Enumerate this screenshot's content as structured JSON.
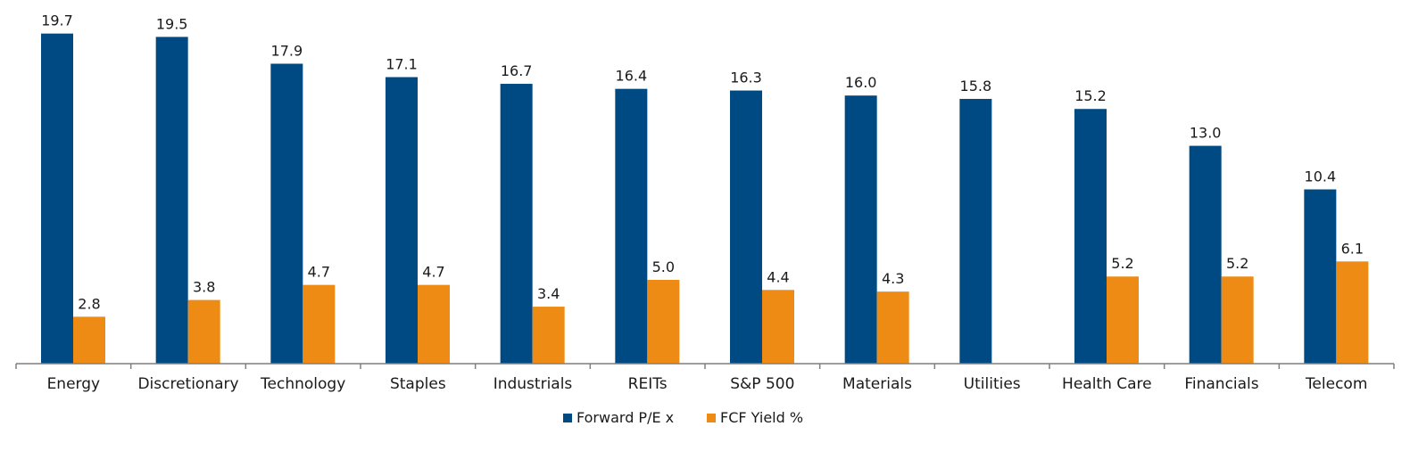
{
  "chart_data": {
    "type": "bar",
    "categories": [
      "Energy",
      "Discretionary",
      "Technology",
      "Staples",
      "Industrials",
      "REITs",
      "S&P 500",
      "Materials",
      "Utilities",
      "Health Care",
      "Financials",
      "Telecom"
    ],
    "series": [
      {
        "name": "Forward P/E x",
        "color": "#004a84",
        "values": [
          19.7,
          19.5,
          17.9,
          17.1,
          16.7,
          16.4,
          16.3,
          16.0,
          15.8,
          15.2,
          13.0,
          10.4
        ]
      },
      {
        "name": "FCF Yield %",
        "color": "#ed8b15",
        "values": [
          2.8,
          3.8,
          4.7,
          4.7,
          3.4,
          5.0,
          4.4,
          4.3,
          null,
          5.2,
          5.2,
          6.1
        ]
      }
    ],
    "ylim": [
      0,
      20
    ],
    "grid": false,
    "legend": "bottom-center",
    "value_labels": true
  }
}
